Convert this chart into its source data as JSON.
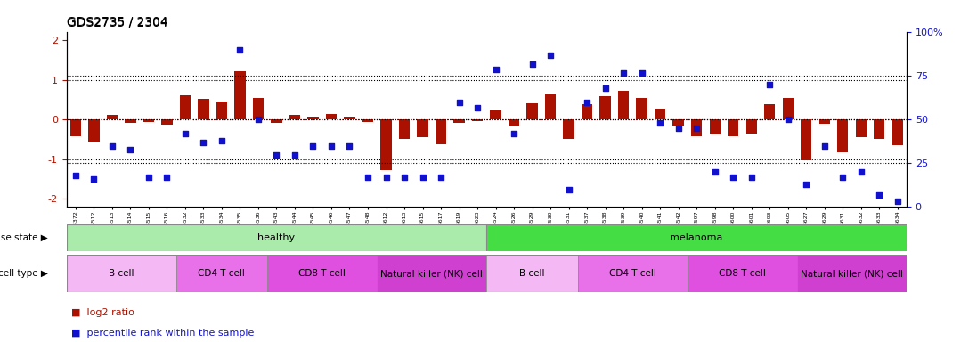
{
  "title": "GDS2735 / 2304",
  "samples": [
    "GSM158372",
    "GSM158512",
    "GSM158513",
    "GSM158514",
    "GSM158515",
    "GSM158516",
    "GSM158532",
    "GSM158533",
    "GSM158534",
    "GSM158535",
    "GSM158536",
    "GSM158543",
    "GSM158544",
    "GSM158545",
    "GSM158546",
    "GSM158547",
    "GSM158548",
    "GSM158612",
    "GSM158613",
    "GSM158615",
    "GSM158617",
    "GSM158619",
    "GSM158623",
    "GSM158524",
    "GSM158526",
    "GSM158529",
    "GSM158530",
    "GSM158531",
    "GSM158537",
    "GSM158538",
    "GSM158539",
    "GSM158540",
    "GSM158541",
    "GSM158542",
    "GSM158597",
    "GSM158598",
    "GSM158600",
    "GSM158601",
    "GSM158603",
    "GSM158605",
    "GSM158627",
    "GSM158629",
    "GSM158631",
    "GSM158632",
    "GSM158633",
    "GSM158634"
  ],
  "log2_ratio": [
    -0.42,
    -0.55,
    0.12,
    -0.08,
    -0.05,
    -0.12,
    0.62,
    0.52,
    0.45,
    1.22,
    0.55,
    -0.08,
    0.12,
    0.08,
    0.15,
    0.08,
    -0.05,
    -1.28,
    -0.48,
    -0.45,
    -0.62,
    -0.08,
    -0.04,
    0.25,
    -0.18,
    0.42,
    0.65,
    -0.48,
    0.38,
    0.6,
    0.72,
    0.55,
    0.28,
    -0.15,
    -0.42,
    -0.38,
    -0.42,
    -0.35,
    0.4,
    0.55,
    -1.02,
    -0.1,
    -0.82,
    -0.45,
    -0.48,
    -0.65
  ],
  "percentile": [
    18,
    16,
    35,
    33,
    17,
    17,
    42,
    37,
    38,
    90,
    50,
    30,
    30,
    35,
    35,
    35,
    17,
    17,
    17,
    17,
    17,
    60,
    57,
    79,
    42,
    82,
    87,
    10,
    60,
    68,
    77,
    77,
    48,
    45,
    45,
    20,
    17,
    17,
    70,
    50,
    13,
    35,
    17,
    20,
    7,
    3
  ],
  "disease_state": [
    "healthy",
    "healthy",
    "healthy",
    "healthy",
    "healthy",
    "healthy",
    "healthy",
    "healthy",
    "healthy",
    "healthy",
    "healthy",
    "healthy",
    "healthy",
    "healthy",
    "healthy",
    "healthy",
    "healthy",
    "healthy",
    "healthy",
    "healthy",
    "healthy",
    "healthy",
    "healthy",
    "melanoma",
    "melanoma",
    "melanoma",
    "melanoma",
    "melanoma",
    "melanoma",
    "melanoma",
    "melanoma",
    "melanoma",
    "melanoma",
    "melanoma",
    "melanoma",
    "melanoma",
    "melanoma",
    "melanoma",
    "melanoma",
    "melanoma",
    "melanoma",
    "melanoma",
    "melanoma",
    "melanoma",
    "melanoma",
    "melanoma"
  ],
  "cell_type": [
    "B cell",
    "B cell",
    "B cell",
    "B cell",
    "B cell",
    "B cell",
    "CD4 T cell",
    "CD4 T cell",
    "CD4 T cell",
    "CD4 T cell",
    "CD4 T cell",
    "CD8 T cell",
    "CD8 T cell",
    "CD8 T cell",
    "CD8 T cell",
    "CD8 T cell",
    "CD8 T cell",
    "Natural killer (NK) cell",
    "Natural killer (NK) cell",
    "Natural killer (NK) cell",
    "Natural killer (NK) cell",
    "Natural killer (NK) cell",
    "Natural killer (NK) cell",
    "B cell",
    "B cell",
    "B cell",
    "B cell",
    "B cell",
    "CD4 T cell",
    "CD4 T cell",
    "CD4 T cell",
    "CD4 T cell",
    "CD4 T cell",
    "CD4 T cell",
    "CD8 T cell",
    "CD8 T cell",
    "CD8 T cell",
    "CD8 T cell",
    "CD8 T cell",
    "CD8 T cell",
    "Natural killer (NK) cell",
    "Natural killer (NK) cell",
    "Natural killer (NK) cell",
    "Natural killer (NK) cell",
    "Natural killer (NK) cell",
    "Natural killer (NK) cell"
  ],
  "bar_color": "#aa1100",
  "dot_color": "#1111cc",
  "healthy_color": "#aaeaaa",
  "melanoma_color": "#44dd44",
  "cell_colors": {
    "B cell": "#f4b8f4",
    "CD4 T cell": "#e870e8",
    "CD8 T cell": "#e050e0",
    "Natural killer (NK) cell": "#d040d0"
  },
  "ylim": [
    -2.2,
    2.2
  ],
  "yticks_left": [
    -2,
    -1,
    0,
    1,
    2
  ],
  "yticks_right": [
    0,
    25,
    50,
    75,
    100
  ],
  "dotted_lines": [
    -1,
    0,
    1
  ]
}
